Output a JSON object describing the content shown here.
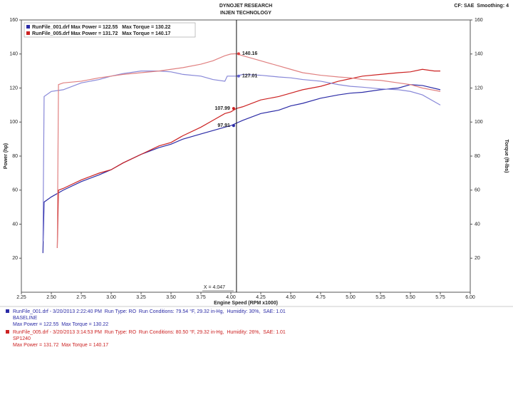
{
  "chart_data": {
    "type": "line",
    "title": "DYNOJET RESEARCH",
    "subtitle": "INJEN TECHNOLOGY",
    "settings_text": "CF: SAE  Smoothing: 4",
    "x_label": "Engine Speed (RPM x1000)",
    "y_label": "Power (hp)",
    "y2_label": "Torque (ft-lbs)",
    "xlim": [
      2.25,
      6.0
    ],
    "xticks": [
      {
        "value": 2.25,
        "label": "2.25"
      },
      {
        "value": 2.5,
        "label": "2.50"
      },
      {
        "value": 2.75,
        "label": "2.75"
      },
      {
        "value": 3.0,
        "label": "3.00"
      },
      {
        "value": 3.25,
        "label": "3.25"
      },
      {
        "value": 3.5,
        "label": "3.50"
      },
      {
        "value": 3.75,
        "label": "3.75"
      },
      {
        "value": 4.0,
        "label": "4.00"
      },
      {
        "value": 4.25,
        "label": "4.25"
      },
      {
        "value": 4.5,
        "label": "4.50"
      },
      {
        "value": 4.75,
        "label": "4.75"
      },
      {
        "value": 5.0,
        "label": "5.00"
      },
      {
        "value": 5.25,
        "label": "5.25"
      },
      {
        "value": 5.5,
        "label": "5.50"
      },
      {
        "value": 5.75,
        "label": "5.75"
      },
      {
        "value": 6.0,
        "label": "6.00"
      }
    ],
    "ylim": [
      0,
      160
    ],
    "yticks": [
      20,
      40,
      60,
      80,
      100,
      120,
      140,
      160
    ],
    "y2lim": [
      0,
      160
    ],
    "y2ticks": [
      20,
      40,
      60,
      80,
      100,
      120,
      140,
      160
    ],
    "grid": false,
    "legend": [
      {
        "text": "RunFile_001.drf Max Power = 122.55   Max Torque = 130.22",
        "color": "#2b2ba6"
      },
      {
        "text": "RunFile_005.drf Max Power = 131.72   Max Torque = 140.17",
        "color": "#cc2222"
      }
    ],
    "series": [
      {
        "color": "#2b2ba6",
        "axis": "y",
        "x": [
          2.43,
          2.44,
          2.5,
          2.6,
          2.75,
          2.9,
          3.0,
          3.1,
          3.25,
          3.4,
          3.5,
          3.6,
          3.75,
          3.85,
          3.95,
          4.0,
          4.1,
          4.25,
          4.4,
          4.5,
          4.6,
          4.75,
          4.9,
          5.0,
          5.1,
          5.25,
          5.4,
          5.5,
          5.6,
          5.75
        ],
        "values": [
          23,
          53,
          56,
          60,
          65,
          69,
          72,
          76,
          81,
          85,
          87,
          90,
          93,
          95,
          97,
          97.91,
          101,
          105,
          107,
          109.5,
          111,
          114,
          116,
          117,
          117.5,
          119,
          120,
          122,
          121.5,
          119
        ]
      },
      {
        "color": "#cc2222",
        "axis": "y",
        "x": [
          2.55,
          2.56,
          2.6,
          2.75,
          2.9,
          3.0,
          3.1,
          3.25,
          3.4,
          3.5,
          3.6,
          3.75,
          3.85,
          3.95,
          4.0,
          4.047,
          4.1,
          4.25,
          4.4,
          4.5,
          4.6,
          4.75,
          4.9,
          5.0,
          5.1,
          5.25,
          5.4,
          5.5,
          5.6,
          5.7,
          5.75
        ],
        "values": [
          26,
          60,
          61,
          66,
          70,
          72,
          76,
          81,
          86,
          88,
          92,
          97,
          101,
          105,
          106,
          107.99,
          109,
          113,
          115,
          117,
          119,
          121,
          124,
          125.5,
          127,
          128,
          129,
          129.5,
          131,
          130,
          130
        ]
      },
      {
        "color": "#8888d8",
        "axis": "y2",
        "x": [
          2.43,
          2.44,
          2.5,
          2.6,
          2.75,
          2.9,
          3.0,
          3.1,
          3.25,
          3.4,
          3.5,
          3.6,
          3.75,
          3.85,
          3.95,
          3.97,
          4.0,
          4.047,
          4.1,
          4.25,
          4.4,
          4.5,
          4.6,
          4.75,
          4.9,
          5.0,
          5.1,
          5.25,
          5.4,
          5.5,
          5.6,
          5.75
        ],
        "values": [
          30,
          115,
          118,
          119,
          123,
          125,
          127,
          128.5,
          130,
          130,
          129.5,
          128,
          127,
          125,
          124,
          127,
          127,
          127.01,
          128,
          127.5,
          126.5,
          126,
          125,
          124,
          122,
          121,
          120.5,
          119.5,
          119,
          118,
          116,
          110
        ]
      },
      {
        "color": "#e08080",
        "axis": "y2",
        "x": [
          2.55,
          2.56,
          2.6,
          2.75,
          2.9,
          3.0,
          3.1,
          3.25,
          3.4,
          3.5,
          3.6,
          3.75,
          3.85,
          3.95,
          4.0,
          4.047,
          4.1,
          4.25,
          4.4,
          4.5,
          4.6,
          4.75,
          4.9,
          5.0,
          5.1,
          5.25,
          5.4,
          5.5,
          5.6,
          5.75
        ],
        "values": [
          26,
          122,
          123,
          124,
          126,
          127,
          128,
          129,
          130,
          131,
          132,
          134,
          136,
          139,
          140,
          140.16,
          139,
          136,
          133,
          131,
          129,
          127.5,
          126.5,
          126,
          125,
          124.5,
          123,
          122,
          120,
          118
        ]
      }
    ],
    "cursor": {
      "x": 4.047,
      "label": "X = 4.047"
    },
    "markers": [
      {
        "x": 4.047,
        "y": 140.16,
        "axis": "y2",
        "color": "#e04040"
      },
      {
        "x": 4.047,
        "y": 127.01,
        "axis": "y2",
        "color": "#6060d0"
      },
      {
        "x": 4.047,
        "y": 107.99,
        "axis": "y",
        "color": "#cc2222"
      },
      {
        "x": 4.047,
        "y": 97.91,
        "axis": "y",
        "color": "#2b2ba6"
      }
    ],
    "footer": [
      {
        "color": "#2b2ba6",
        "lines": [
          "RunFile_001.drf - 3/20/2013 2:22:40 PM  Run Type: RO  Run Conditions: 79.54 °F, 29.32 in-Hg,  Humidity: 30%,  SAE: 1.01",
          "BASELINE",
          "Max Power = 122.55  Max Torque = 130.22"
        ]
      },
      {
        "color": "#cc2222",
        "lines": [
          "RunFile_005.drf - 3/20/2013 3:14:53 PM  Run Type: RO  Run Conditions: 80.50 °F, 29.32 in-Hg,  Humidity: 26%,  SAE: 1.01",
          "SP1240",
          "Max Power = 131.72  Max Torque = 140.17"
        ]
      }
    ]
  }
}
